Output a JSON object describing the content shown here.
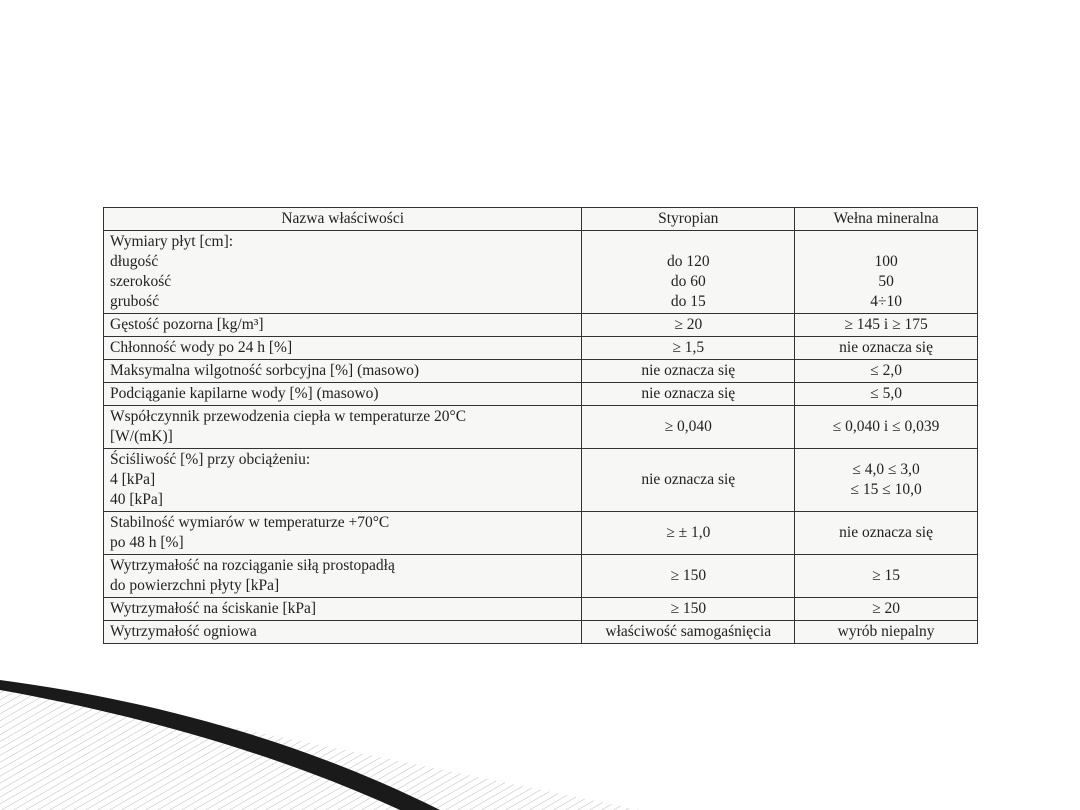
{
  "table": {
    "headers": [
      "Nazwa właściwości",
      "Styropian",
      "Wełna mineralna"
    ],
    "dimensions": {
      "label": "Wymiary płyt [cm]:",
      "items": [
        {
          "name": "długość",
          "styropian": "do 120",
          "welna": "100"
        },
        {
          "name": "szerokość",
          "styropian": "do 60",
          "welna": "50"
        },
        {
          "name": "grubość",
          "styropian": "do 15",
          "welna": "4÷10"
        }
      ]
    },
    "rows": [
      {
        "name": [
          "Gęstość pozorna [kg/m³]"
        ],
        "styropian": [
          "≥ 20"
        ],
        "welna": [
          "≥ 145 i ≥ 175"
        ]
      },
      {
        "name": [
          "Chłonność wody po 24 h [%]"
        ],
        "styropian": [
          "≥ 1,5"
        ],
        "welna": [
          "nie oznacza się"
        ]
      },
      {
        "name": [
          "Maksymalna wilgotność sorbcyjna [%] (masowo)"
        ],
        "styropian": [
          "nie oznacza się"
        ],
        "welna": [
          "≤ 2,0"
        ]
      },
      {
        "name": [
          "Podciąganie kapilarne wody [%] (masowo)"
        ],
        "styropian": [
          "nie oznacza się"
        ],
        "welna": [
          "≤ 5,0"
        ]
      },
      {
        "name": [
          "Współczynnik przewodzenia ciepła w temperaturze 20°C",
          "[W/(mK)]"
        ],
        "styropian": [
          "≥ 0,040"
        ],
        "welna": [
          "≤ 0,040 i ≤ 0,039"
        ]
      },
      {
        "name": [
          "Ściśliwość [%] przy obciążeniu:",
          "4 [kPa]",
          "40 [kPa]"
        ],
        "styropian": [
          "nie oznacza się"
        ],
        "welna": [
          "≤ 4,0 ≤ 3,0",
          "≤ 15 ≤ 10,0"
        ]
      },
      {
        "name": [
          "Stabilność wymiarów w temperaturze +70°C",
          "po 48 h [%]"
        ],
        "styropian": [
          "≥ ± 1,0"
        ],
        "welna": [
          "nie oznacza się"
        ]
      },
      {
        "name": [
          "Wytrzymałość na rozciąganie siłą prostopadłą",
          "do powierzchni płyty [kPa]"
        ],
        "styropian": [
          "≥ 150"
        ],
        "welna": [
          "≥ 15"
        ]
      },
      {
        "name": [
          "Wytrzymałość na ściskanie [kPa]"
        ],
        "styropian": [
          "≥ 150"
        ],
        "welna": [
          "≥ 20"
        ]
      },
      {
        "name": [
          "Wytrzymałość ogniowa"
        ],
        "styropian": [
          "właściwość samogaśnięcia"
        ],
        "welna": [
          "wyrób niepalny"
        ]
      }
    ]
  }
}
